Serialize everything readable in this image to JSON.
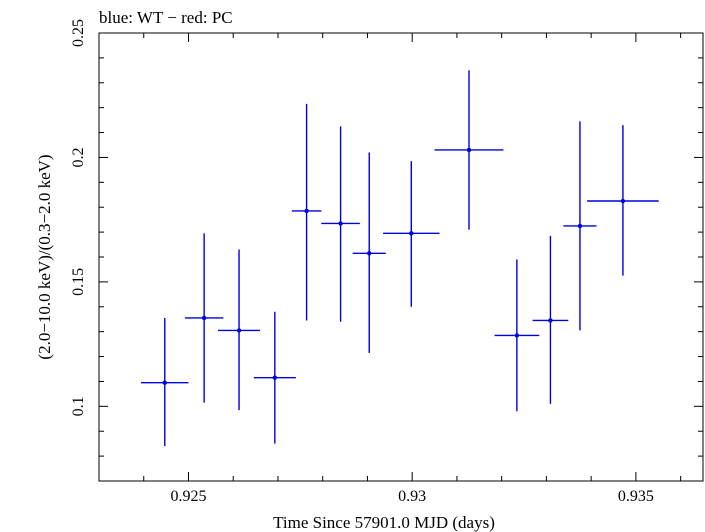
{
  "chart_data": {
    "type": "scatter",
    "title": "blue: WT − red: PC",
    "xlabel": "Time Since 57901.0 MJD (days)",
    "ylabel": "(2.0−10.0 keV)/(0.3−2.0 keV)",
    "xlim": [
      0.923,
      0.9365
    ],
    "ylim": [
      0.07,
      0.25
    ],
    "xticks": [
      0.925,
      0.93,
      0.935
    ],
    "xtick_labels": [
      "0.925",
      "0.93",
      "0.935"
    ],
    "yticks": [
      0.1,
      0.15,
      0.2,
      0.25
    ],
    "ytick_labels": [
      "0.1",
      "0.15",
      "0.2",
      "0.25"
    ],
    "series": [
      {
        "name": "WT",
        "color": "#0000e0",
        "points": [
          {
            "x": 0.92447,
            "xerr": 0.00053,
            "y": 0.1095,
            "ylo": 0.084,
            "yhi": 0.1355
          },
          {
            "x": 0.92535,
            "xerr": 0.00043,
            "y": 0.1355,
            "ylo": 0.1015,
            "yhi": 0.1695
          },
          {
            "x": 0.92613,
            "xerr": 0.00047,
            "y": 0.1305,
            "ylo": 0.0985,
            "yhi": 0.163
          },
          {
            "x": 0.92693,
            "xerr": 0.00047,
            "y": 0.1115,
            "ylo": 0.085,
            "yhi": 0.138
          },
          {
            "x": 0.92764,
            "xerr": 0.00033,
            "y": 0.1785,
            "ylo": 0.1345,
            "yhi": 0.2215
          },
          {
            "x": 0.9284,
            "xerr": 0.00043,
            "y": 0.1735,
            "ylo": 0.134,
            "yhi": 0.2125
          },
          {
            "x": 0.92904,
            "xerr": 0.00037,
            "y": 0.1615,
            "ylo": 0.1215,
            "yhi": 0.202
          },
          {
            "x": 0.92998,
            "xerr": 0.00063,
            "y": 0.1695,
            "ylo": 0.14,
            "yhi": 0.1985
          },
          {
            "x": 0.93127,
            "xerr": 0.00077,
            "y": 0.203,
            "ylo": 0.171,
            "yhi": 0.235
          },
          {
            "x": 0.93234,
            "xerr": 0.0005,
            "y": 0.1285,
            "ylo": 0.098,
            "yhi": 0.159
          },
          {
            "x": 0.93309,
            "xerr": 0.0004,
            "y": 0.1345,
            "ylo": 0.101,
            "yhi": 0.1685
          },
          {
            "x": 0.93375,
            "xerr": 0.00037,
            "y": 0.1725,
            "ylo": 0.1305,
            "yhi": 0.2145
          },
          {
            "x": 0.93471,
            "xerr": 0.0008,
            "y": 0.1825,
            "ylo": 0.1525,
            "yhi": 0.213
          }
        ]
      }
    ]
  }
}
